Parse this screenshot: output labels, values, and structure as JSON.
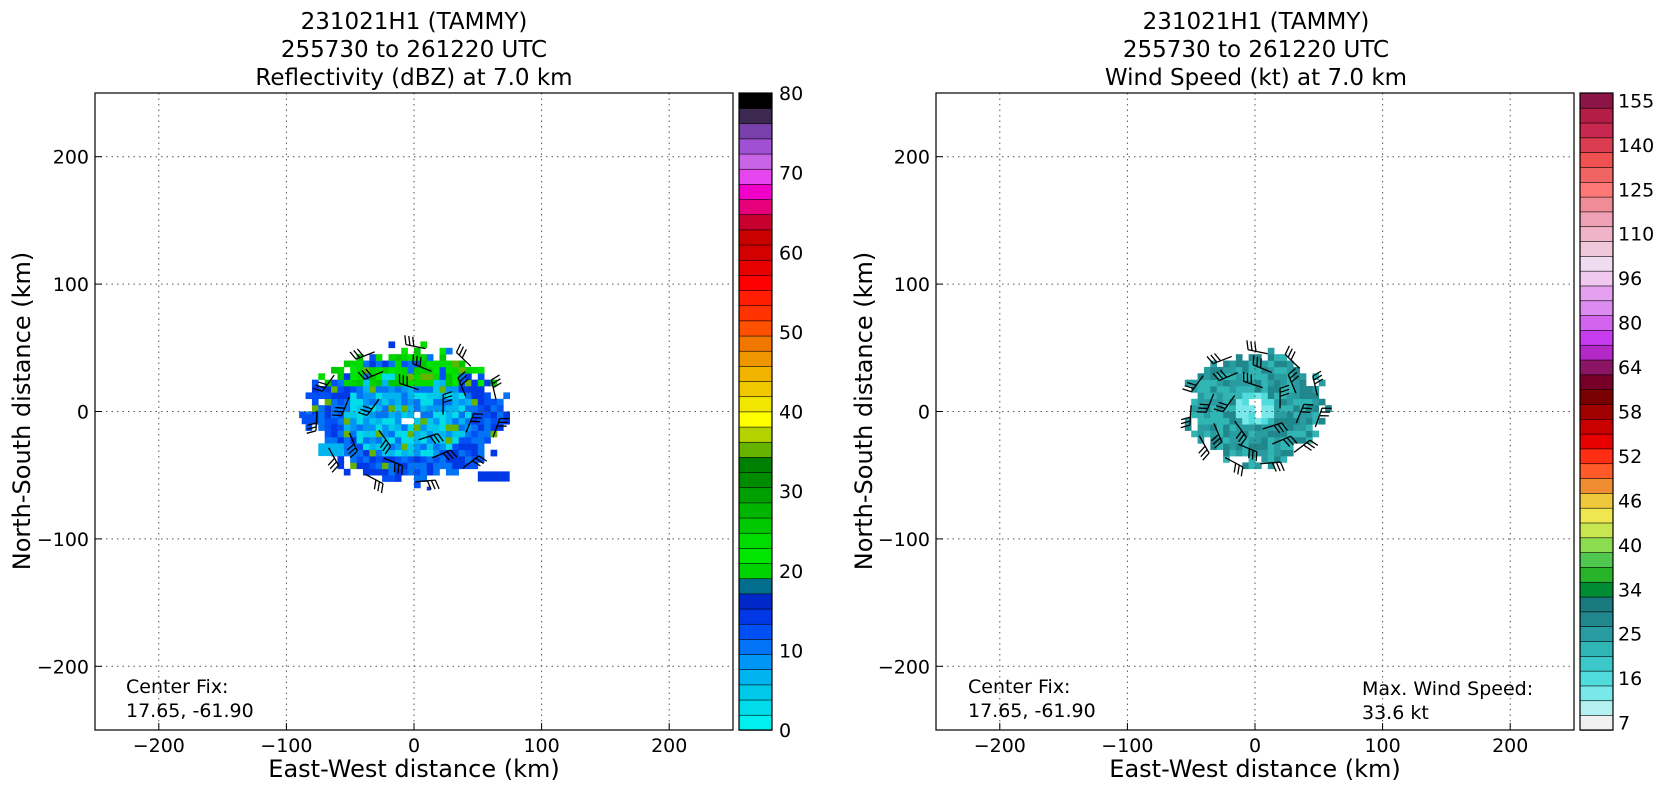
{
  "colors": {
    "reflectivity_scale": [
      "#00f0f0",
      "#00dcea",
      "#00c8e8",
      "#00b4f0",
      "#0096f5",
      "#0074f5",
      "#0050f5",
      "#0038e5",
      "#0028c8",
      "#006e8c",
      "#00d400",
      "#00e600",
      "#00dc00",
      "#00c800",
      "#00b400",
      "#00a000",
      "#008c00",
      "#008000",
      "#66b400",
      "#b4d200",
      "#ffff00",
      "#f0e600",
      "#f0c800",
      "#f0b400",
      "#f09600",
      "#f07800",
      "#ff5000",
      "#ff3200",
      "#ff1e00",
      "#ff0000",
      "#e60000",
      "#d20000",
      "#c80000",
      "#c8002d",
      "#e6007a",
      "#f000c8",
      "#e646f0",
      "#c864e6",
      "#a050d2",
      "#7840aa",
      "#3c2850",
      "#000000"
    ],
    "windspeed_scale": [
      "#f0f0f0",
      "#b4f0f0",
      "#78e8ea",
      "#50dcdc",
      "#3cc8c8",
      "#30b4b4",
      "#289ca0",
      "#20888c",
      "#1a7a7e",
      "#008c32",
      "#28b428",
      "#50c850",
      "#8cdc50",
      "#c8e650",
      "#f0e650",
      "#f0c83c",
      "#f08c32",
      "#ff5a28",
      "#ff2d14",
      "#e60000",
      "#c80000",
      "#a00000",
      "#780000",
      "#780028",
      "#8c1464",
      "#b428c8",
      "#c83cf0",
      "#d264f0",
      "#dc8cf0",
      "#e6a0f0",
      "#f0c8f0",
      "#f0dcf0",
      "#f0c8dc",
      "#f0b4c8",
      "#f0a0b4",
      "#f08c96",
      "#ff7878",
      "#f06464",
      "#f05050",
      "#dc3c50",
      "#c82850",
      "#b41e46",
      "#8c1446"
    ]
  },
  "chart_data": [
    {
      "type": "heatmap",
      "title_lines": [
        "231021H1 (TAMMY)",
        "255730 to 261220 UTC",
        "Reflectivity (dBZ) at 7.0 km"
      ],
      "xlabel": "East-West distance (km)",
      "ylabel": "North-South distance (km)",
      "xlim": [
        -250,
        250
      ],
      "ylim": [
        -250,
        250
      ],
      "x_ticks": [
        -200,
        -100,
        0,
        100,
        200
      ],
      "y_ticks": [
        -200,
        -100,
        0,
        100,
        200
      ],
      "x_tick_labels": [
        "−200",
        "−100",
        "0",
        "100",
        "200"
      ],
      "y_tick_labels": [
        "−200",
        "−100",
        "0",
        "100",
        "200"
      ],
      "grid": true,
      "annotations": [
        {
          "text": "Center Fix:",
          "position": "bottom-left"
        },
        {
          "text": "17.65, -61.90",
          "position": "bottom-left"
        }
      ],
      "colorbar": {
        "min": 0,
        "max": 80,
        "tick_values": [
          0,
          10,
          20,
          30,
          40,
          50,
          60,
          70,
          80
        ],
        "tick_labels": [
          "0",
          "10",
          "20",
          "30",
          "40",
          "50",
          "60",
          "70",
          "80"
        ]
      },
      "echo_extent_km": {
        "west": -90,
        "east": 80,
        "south": -60,
        "north": 55
      }
    },
    {
      "type": "heatmap",
      "title_lines": [
        "231021H1 (TAMMY)",
        "255730 to 261220 UTC",
        "Wind Speed (kt) at 7.0 km"
      ],
      "xlabel": "East-West distance (km)",
      "ylabel": "North-South distance (km)",
      "xlim": [
        -250,
        250
      ],
      "ylim": [
        -250,
        250
      ],
      "x_ticks": [
        -200,
        -100,
        0,
        100,
        200
      ],
      "y_ticks": [
        -200,
        -100,
        0,
        100,
        200
      ],
      "x_tick_labels": [
        "−200",
        "−100",
        "0",
        "100",
        "200"
      ],
      "y_tick_labels": [
        "−200",
        "−100",
        "0",
        "100",
        "200"
      ],
      "grid": true,
      "annotations": [
        {
          "text": "Center Fix:",
          "position": "bottom-left"
        },
        {
          "text": "17.65, -61.90",
          "position": "bottom-left"
        },
        {
          "text": "Max. Wind Speed:",
          "position": "bottom-right"
        },
        {
          "text": "33.6 kt",
          "position": "bottom-right"
        }
      ],
      "colorbar": {
        "tick_labels": [
          "7",
          "16",
          "25",
          "34",
          "40",
          "46",
          "52",
          "58",
          "64",
          "80",
          "96",
          "110",
          "125",
          "140",
          "155"
        ],
        "tick_band_indices": [
          0,
          3,
          6,
          9,
          12,
          15,
          18,
          21,
          24,
          27,
          30,
          33,
          36,
          39,
          42
        ]
      },
      "max_wind_speed_kt": 33.6,
      "echo_extent_km": {
        "west": -60,
        "east": 60,
        "south": -45,
        "north": 50
      }
    }
  ]
}
